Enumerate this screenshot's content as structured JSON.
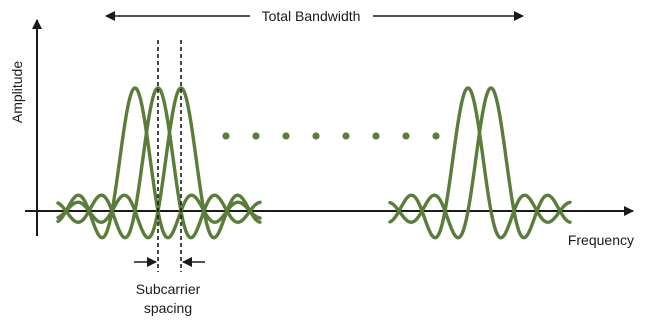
{
  "labels": {
    "total_bandwidth": "Total Bandwidth",
    "amplitude": "Amplitude",
    "frequency": "Frequency",
    "subcarrier_line1": "Subcarrier",
    "subcarrier_line2": "spacing"
  },
  "colors": {
    "curve": "#5a7d3a",
    "axis": "#1a1a1a",
    "dots": "#5a7d3a",
    "dashed": "#1a1a1a"
  },
  "group1_subcarrier_count": 3,
  "group2_subcarrier_count": 2,
  "ellipsis_dot_count": 8
}
